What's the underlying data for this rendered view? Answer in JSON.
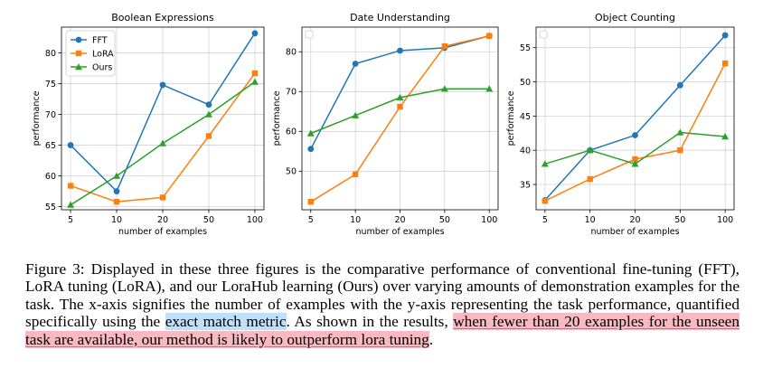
{
  "chart_data": [
    {
      "type": "line",
      "title": "Boolean Expressions",
      "xlabel": "number of examples",
      "ylabel": "performance",
      "categories": [
        "5",
        "10",
        "20",
        "50",
        "100"
      ],
      "yticks": [
        55,
        60,
        65,
        70,
        75,
        80
      ],
      "ylim": [
        54.5,
        84.2
      ],
      "grid": true,
      "legend": "top-left",
      "series": [
        {
          "name": "FFT",
          "color": "#1f77b4",
          "marker": "circle",
          "values": [
            65.0,
            57.5,
            74.8,
            71.6,
            83.2
          ]
        },
        {
          "name": "LoRA",
          "color": "#ff7f0e",
          "marker": "square",
          "values": [
            58.4,
            55.8,
            56.5,
            66.5,
            76.7
          ]
        },
        {
          "name": "Ours",
          "color": "#2ca02c",
          "marker": "triangle",
          "values": [
            55.3,
            60.0,
            65.3,
            70.0,
            75.3
          ]
        }
      ]
    },
    {
      "type": "line",
      "title": "Date Understanding",
      "xlabel": "number of examples",
      "ylabel": "performance",
      "categories": [
        "5",
        "10",
        "20",
        "50",
        "100"
      ],
      "yticks": [
        50,
        60,
        70,
        80
      ],
      "ylim": [
        40.3,
        86.2
      ],
      "grid": true,
      "legend": "top-left",
      "series": [
        {
          "name": "FFT",
          "color": "#1f77b4",
          "marker": "circle",
          "values": [
            55.6,
            77.0,
            80.3,
            81.0,
            84.0
          ]
        },
        {
          "name": "LoRA",
          "color": "#ff7f0e",
          "marker": "square",
          "values": [
            42.3,
            49.2,
            66.2,
            81.4,
            84.0
          ]
        },
        {
          "name": "Ours",
          "color": "#2ca02c",
          "marker": "triangle",
          "values": [
            59.5,
            64.0,
            68.5,
            70.7,
            70.7
          ]
        }
      ]
    },
    {
      "type": "line",
      "title": "Object Counting",
      "xlabel": "number of examples",
      "ylabel": "performance",
      "categories": [
        "5",
        "10",
        "20",
        "50",
        "100"
      ],
      "yticks": [
        35,
        40,
        45,
        50,
        55
      ],
      "ylim": [
        31.3,
        58.0
      ],
      "grid": true,
      "legend": "top-left",
      "series": [
        {
          "name": "FFT",
          "color": "#1f77b4",
          "marker": "circle",
          "values": [
            32.7,
            40.0,
            42.2,
            49.5,
            56.8
          ]
        },
        {
          "name": "LoRA",
          "color": "#ff7f0e",
          "marker": "square",
          "values": [
            32.6,
            35.8,
            38.7,
            40.0,
            52.7
          ]
        },
        {
          "name": "Ours",
          "color": "#2ca02c",
          "marker": "triangle",
          "values": [
            38.0,
            40.0,
            38.0,
            42.6,
            42.0
          ]
        }
      ]
    }
  ],
  "caption": {
    "part1": "Figure 3: Displayed in these three figures is the comparative performance of conventional fine-tuning (FFT), LoRA tuning (LoRA), and our LoraHub learning (Ours) over varying amounts of demonstration examples for the task. The x-axis signifies the number of examples with the y-axis representing the task performance, quantified specifically using the ",
    "highlight1": "exact match metric",
    "part2": ". As shown in the results, ",
    "highlight2": "when fewer than 20 examples for the unseen task are available, our method is likely to outperform lora tuning",
    "part3": "."
  }
}
